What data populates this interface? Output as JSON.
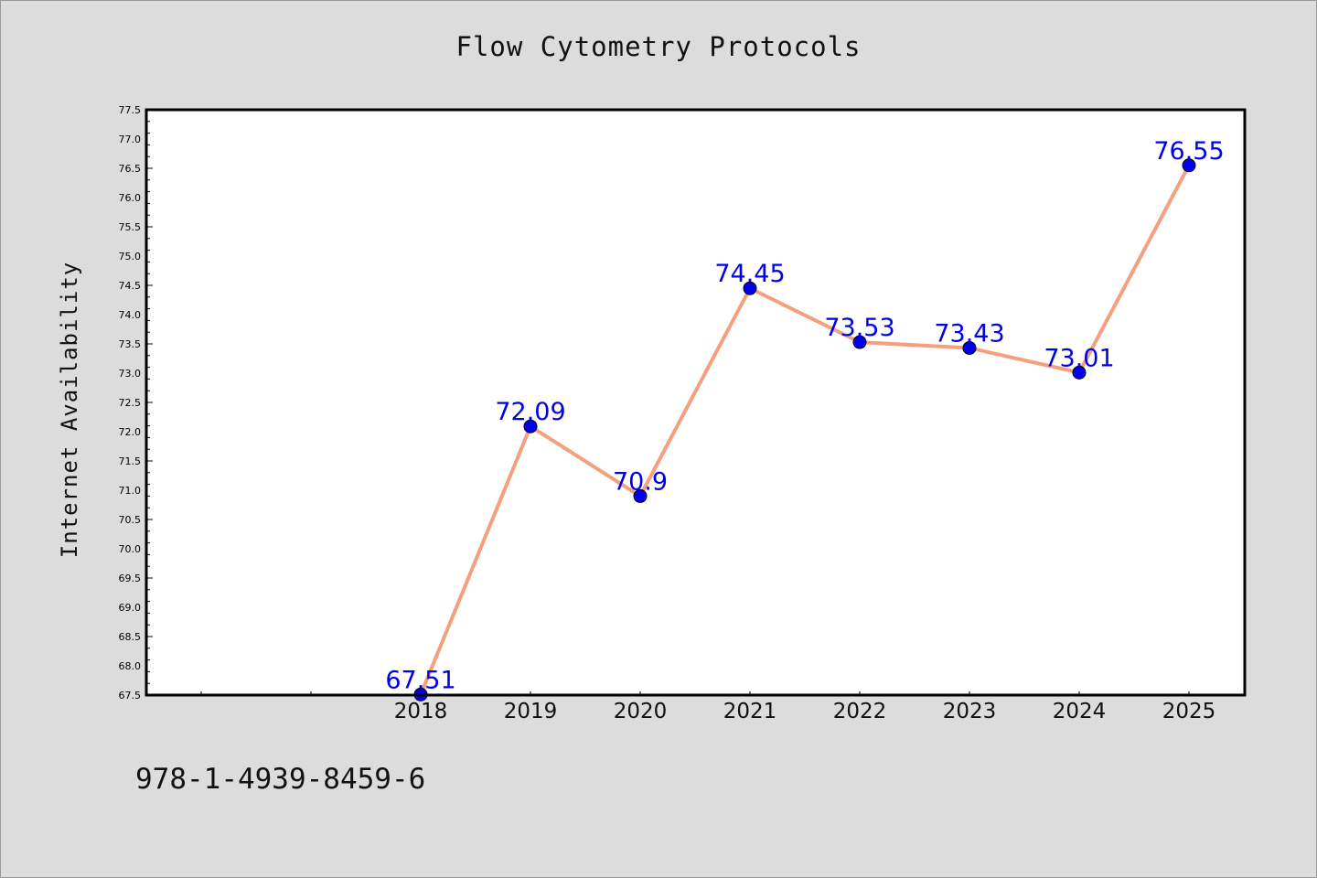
{
  "chart_data": {
    "type": "line",
    "title": "Flow Cytometry Protocols",
    "xlabel": "",
    "ylabel": "Internet Availability",
    "categories": [
      "2018",
      "2019",
      "2020",
      "2021",
      "2022",
      "2023",
      "2024",
      "2025"
    ],
    "series": [
      {
        "values": [
          67.51,
          72.09,
          70.9,
          74.45,
          73.53,
          73.43,
          73.01,
          76.55
        ],
        "labels": [
          "67.51",
          "72.09",
          "70.9",
          "74.45",
          "73.53",
          "73.43",
          "73.01",
          "76.55"
        ]
      }
    ],
    "ylim": [
      67.5,
      77.5
    ],
    "ytick_labels": [
      "67.5",
      "68.0",
      "68.5",
      "69.0",
      "69.5",
      "70.0",
      "70.5",
      "71.0",
      "71.5",
      "72.0",
      "72.5",
      "73.0",
      "73.5",
      "74.0",
      "74.5",
      "75.0",
      "75.5",
      "76.0",
      "76.5",
      "77.0",
      "77.5"
    ],
    "grid": false,
    "line_color": "#f4a07e",
    "marker_color": "#0000ee",
    "label_color": "#0000ee",
    "background_color": "#dcdcdc",
    "plot_background": "#ffffff"
  },
  "footer": {
    "isbn": "978-1-4939-8459-6"
  }
}
